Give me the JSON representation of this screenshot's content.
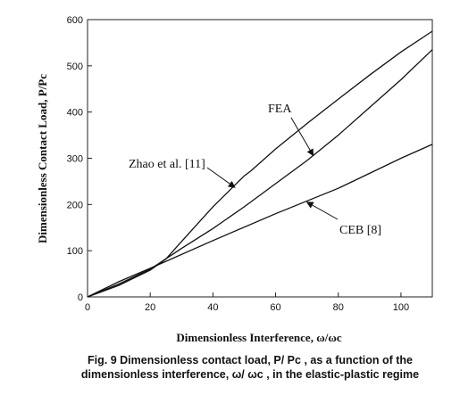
{
  "chart_data": {
    "type": "line",
    "xlabel": "Dimensionless Interference, ω/ωc",
    "ylabel": "Dimensionless Contact Load, P/Pc",
    "xlim": [
      0,
      110
    ],
    "ylim": [
      0,
      600
    ],
    "x_ticks": [
      0,
      20,
      40,
      60,
      80,
      100
    ],
    "y_ticks": [
      0,
      100,
      200,
      300,
      400,
      500,
      600
    ],
    "grid": false,
    "series": [
      {
        "name": "Zhao et al. [11]",
        "x": [
          0,
          10,
          20,
          25,
          30,
          40,
          50,
          52,
          60,
          70,
          80,
          90,
          100,
          110
        ],
        "y": [
          0,
          25,
          58,
          82,
          120,
          195,
          262,
          272,
          320,
          375,
          428,
          480,
          530,
          575
        ]
      },
      {
        "name": "FEA",
        "x": [
          0,
          10,
          20,
          30,
          40,
          50,
          60,
          70,
          80,
          90,
          100,
          110
        ],
        "y": [
          0,
          28,
          60,
          105,
          148,
          195,
          245,
          295,
          350,
          410,
          470,
          535
        ]
      },
      {
        "name": "CEB [8]",
        "x": [
          0,
          10,
          20,
          40,
          60,
          80,
          100,
          110
        ],
        "y": [
          0,
          33,
          62,
          122,
          180,
          235,
          300,
          330
        ]
      }
    ],
    "annotations": [
      {
        "label": "Zhao et al. [11]",
        "x": 47,
        "y": 240
      },
      {
        "label": "FEA",
        "x": 70,
        "y": 340
      },
      {
        "label": "CEB [8]",
        "x": 70,
        "y": 215
      }
    ]
  },
  "caption": {
    "line1": "Fig. 9   Dimensionless contact load, P/ Pc , as a function of the",
    "line2": "dimensionless interference, ω/ ωc , in the elastic-plastic regime"
  }
}
